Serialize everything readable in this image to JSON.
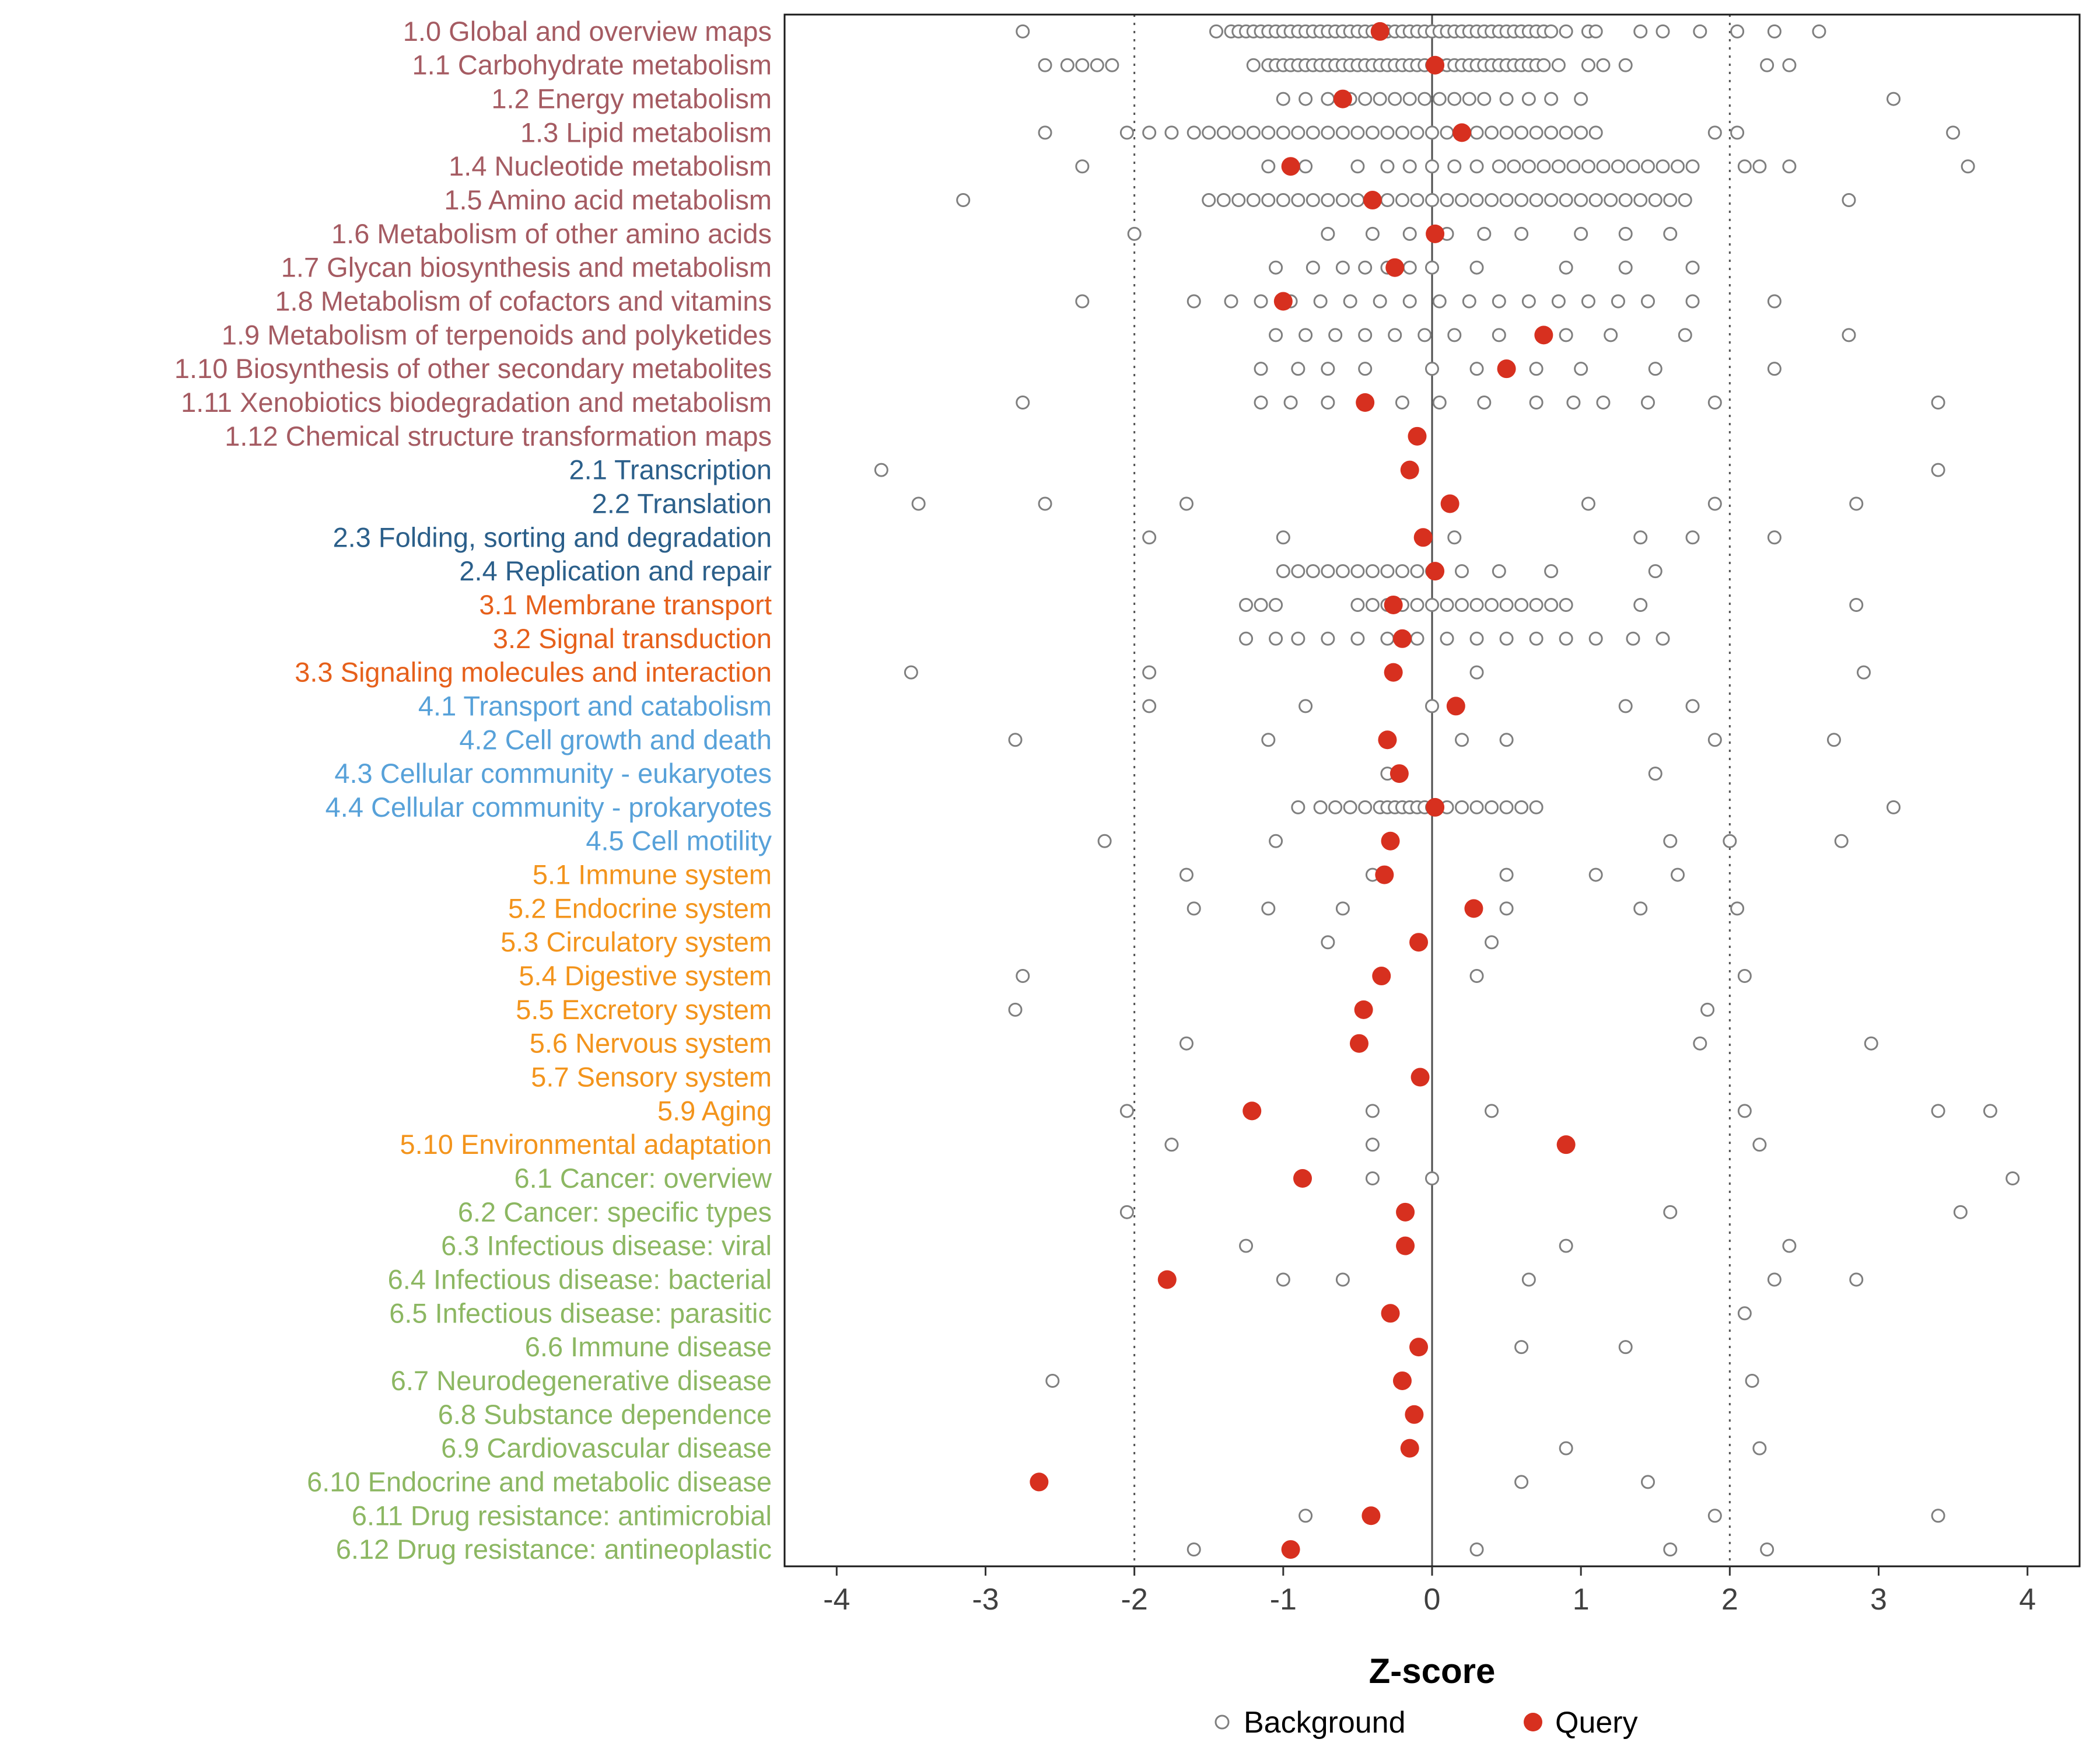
{
  "chart_data": {
    "type": "scatter",
    "title": "",
    "xlabel": "Z-score",
    "xlim": [
      -4.35,
      4.35
    ],
    "xticks": [
      -4,
      -3,
      -2,
      -1,
      0,
      1,
      2,
      3,
      4
    ],
    "grid": false,
    "reference_lines": {
      "solid": [
        0
      ],
      "dotted": [
        -2,
        2
      ]
    },
    "legend_position": "bottom",
    "legend": [
      {
        "label": "Background",
        "marker": "open-circle",
        "color": "#7f7f7f"
      },
      {
        "label": "Query",
        "marker": "filled-circle",
        "color": "#d7301f"
      }
    ],
    "group_colors": {
      "1": "#a55b62",
      "2": "#2b5f8a",
      "3": "#e6601b",
      "4": "#57a1d9",
      "5": "#f3941c",
      "6": "#8cb762"
    },
    "rows": [
      {
        "label": "1.0 Global and overview maps",
        "group": "1",
        "query": -0.35,
        "background": [
          -2.75,
          -1.45,
          -1.35,
          -1.3,
          -1.25,
          -1.2,
          -1.15,
          -1.1,
          -1.05,
          -1.0,
          -0.95,
          -0.9,
          -0.85,
          -0.8,
          -0.75,
          -0.7,
          -0.65,
          -0.6,
          -0.55,
          -0.5,
          -0.45,
          -0.4,
          -0.35,
          -0.3,
          -0.25,
          -0.2,
          -0.15,
          -0.1,
          -0.05,
          0.0,
          0.05,
          0.1,
          0.15,
          0.2,
          0.25,
          0.3,
          0.35,
          0.4,
          0.45,
          0.5,
          0.55,
          0.6,
          0.65,
          0.7,
          0.75,
          0.8,
          0.9,
          1.05,
          1.1,
          1.4,
          1.55,
          1.8,
          2.05,
          2.3,
          2.6
        ]
      },
      {
        "label": "1.1 Carbohydrate metabolism",
        "group": "1",
        "query": 0.02,
        "background": [
          -2.6,
          -2.45,
          -2.35,
          -2.25,
          -2.15,
          -1.2,
          -1.1,
          -1.05,
          -1.0,
          -0.95,
          -0.9,
          -0.85,
          -0.8,
          -0.75,
          -0.7,
          -0.65,
          -0.6,
          -0.55,
          -0.5,
          -0.45,
          -0.4,
          -0.35,
          -0.3,
          -0.25,
          -0.2,
          -0.15,
          -0.1,
          -0.05,
          0.0,
          0.05,
          0.1,
          0.15,
          0.2,
          0.25,
          0.3,
          0.35,
          0.4,
          0.45,
          0.5,
          0.55,
          0.6,
          0.65,
          0.7,
          0.75,
          0.85,
          1.05,
          1.15,
          1.3,
          2.25,
          2.4
        ]
      },
      {
        "label": "1.2 Energy metabolism",
        "group": "1",
        "query": -0.6,
        "background": [
          -1.0,
          -0.85,
          -0.7,
          -0.55,
          -0.45,
          -0.35,
          -0.25,
          -0.15,
          -0.05,
          0.05,
          0.15,
          0.25,
          0.35,
          0.5,
          0.65,
          0.8,
          1.0,
          3.1
        ]
      },
      {
        "label": "1.3 Lipid metabolism",
        "group": "1",
        "query": 0.2,
        "background": [
          -2.6,
          -2.05,
          -1.9,
          -1.75,
          -1.6,
          -1.5,
          -1.4,
          -1.3,
          -1.2,
          -1.1,
          -1.0,
          -0.9,
          -0.8,
          -0.7,
          -0.6,
          -0.5,
          -0.4,
          -0.3,
          -0.2,
          -0.1,
          0.0,
          0.1,
          0.2,
          0.3,
          0.4,
          0.5,
          0.6,
          0.7,
          0.8,
          0.9,
          1.0,
          1.1,
          1.9,
          2.05,
          3.5
        ]
      },
      {
        "label": "1.4 Nucleotide metabolism",
        "group": "1",
        "query": -0.95,
        "background": [
          -2.35,
          -1.1,
          -0.85,
          -0.5,
          -0.3,
          -0.15,
          0.0,
          0.15,
          0.3,
          0.45,
          0.55,
          0.65,
          0.75,
          0.85,
          0.95,
          1.05,
          1.15,
          1.25,
          1.35,
          1.45,
          1.55,
          1.65,
          1.75,
          2.1,
          2.2,
          2.4,
          3.6
        ]
      },
      {
        "label": "1.5 Amino acid metabolism",
        "group": "1",
        "query": -0.4,
        "background": [
          -3.15,
          -1.5,
          -1.4,
          -1.3,
          -1.2,
          -1.1,
          -1.0,
          -0.9,
          -0.8,
          -0.7,
          -0.6,
          -0.5,
          -0.4,
          -0.3,
          -0.2,
          -0.1,
          0.0,
          0.1,
          0.2,
          0.3,
          0.4,
          0.5,
          0.6,
          0.7,
          0.8,
          0.9,
          1.0,
          1.1,
          1.2,
          1.3,
          1.4,
          1.5,
          1.6,
          1.7,
          2.8
        ]
      },
      {
        "label": "1.6 Metabolism of other amino acids",
        "group": "1",
        "query": 0.02,
        "background": [
          -2.0,
          -0.7,
          -0.4,
          -0.15,
          0.1,
          0.35,
          0.6,
          1.0,
          1.3,
          1.6
        ]
      },
      {
        "label": "1.7 Glycan biosynthesis and metabolism",
        "group": "1",
        "query": -0.25,
        "background": [
          -1.05,
          -0.8,
          -0.6,
          -0.45,
          -0.3,
          -0.15,
          0.0,
          0.3,
          0.9,
          1.3,
          1.75
        ]
      },
      {
        "label": "1.8 Metabolism of cofactors and vitamins",
        "group": "1",
        "query": -1.0,
        "background": [
          -2.35,
          -1.6,
          -1.35,
          -1.15,
          -0.95,
          -0.75,
          -0.55,
          -0.35,
          -0.15,
          0.05,
          0.25,
          0.45,
          0.65,
          0.85,
          1.05,
          1.25,
          1.45,
          1.75,
          2.3
        ]
      },
      {
        "label": "1.9 Metabolism of terpenoids and polyketides",
        "group": "1",
        "query": 0.75,
        "background": [
          -1.05,
          -0.85,
          -0.65,
          -0.45,
          -0.25,
          -0.05,
          0.15,
          0.45,
          0.9,
          1.2,
          1.7,
          2.8
        ]
      },
      {
        "label": "1.10 Biosynthesis of other secondary metabolites",
        "group": "1",
        "query": 0.5,
        "background": [
          -1.15,
          -0.9,
          -0.7,
          -0.45,
          0.0,
          0.3,
          0.7,
          1.0,
          1.5,
          2.3
        ]
      },
      {
        "label": "1.11 Xenobiotics biodegradation and metabolism",
        "group": "1",
        "query": -0.45,
        "background": [
          -2.75,
          -1.15,
          -0.95,
          -0.7,
          -0.45,
          -0.2,
          0.05,
          0.35,
          0.7,
          0.95,
          1.15,
          1.45,
          1.9,
          3.4
        ]
      },
      {
        "label": "1.12 Chemical structure transformation maps",
        "group": "1",
        "query": -0.1,
        "background": []
      },
      {
        "label": "2.1 Transcription",
        "group": "2",
        "query": -0.15,
        "background": [
          -3.7,
          3.4
        ]
      },
      {
        "label": "2.2 Translation",
        "group": "2",
        "query": 0.12,
        "background": [
          -3.45,
          -2.6,
          -1.65,
          1.05,
          1.9,
          2.85
        ]
      },
      {
        "label": "2.3 Folding, sorting and degradation",
        "group": "2",
        "query": -0.06,
        "background": [
          -1.9,
          -1.0,
          0.15,
          1.4,
          1.75,
          2.3
        ]
      },
      {
        "label": "2.4 Replication and repair",
        "group": "2",
        "query": 0.02,
        "background": [
          -1.0,
          -0.9,
          -0.8,
          -0.7,
          -0.6,
          -0.5,
          -0.4,
          -0.3,
          -0.2,
          -0.1,
          0.0,
          0.2,
          0.45,
          0.8,
          1.5
        ]
      },
      {
        "label": "3.1 Membrane transport",
        "group": "3",
        "query": -0.26,
        "background": [
          -1.25,
          -1.15,
          -1.05,
          -0.5,
          -0.4,
          -0.3,
          -0.2,
          -0.1,
          0.0,
          0.1,
          0.2,
          0.3,
          0.4,
          0.5,
          0.6,
          0.7,
          0.8,
          0.9,
          1.4,
          2.85
        ]
      },
      {
        "label": "3.2 Signal transduction",
        "group": "3",
        "query": -0.2,
        "background": [
          -1.25,
          -1.05,
          -0.9,
          -0.7,
          -0.5,
          -0.3,
          -0.1,
          0.1,
          0.3,
          0.5,
          0.7,
          0.9,
          1.1,
          1.35,
          1.55
        ]
      },
      {
        "label": "3.3 Signaling molecules and interaction",
        "group": "3",
        "query": -0.26,
        "background": [
          -3.5,
          -1.9,
          0.3,
          2.9
        ]
      },
      {
        "label": "4.1 Transport and catabolism",
        "group": "4",
        "query": 0.16,
        "background": [
          -1.9,
          -0.85,
          0.0,
          1.3,
          1.75
        ]
      },
      {
        "label": "4.2 Cell growth and death",
        "group": "4",
        "query": -0.3,
        "background": [
          -2.8,
          -1.1,
          0.2,
          0.5,
          1.9,
          2.7
        ]
      },
      {
        "label": "4.3 Cellular community - eukaryotes",
        "group": "4",
        "query": -0.22,
        "background": [
          -0.3,
          1.5
        ]
      },
      {
        "label": "4.4 Cellular community - prokaryotes",
        "group": "4",
        "query": 0.02,
        "background": [
          -0.9,
          -0.75,
          -0.65,
          -0.55,
          -0.45,
          -0.35,
          -0.3,
          -0.25,
          -0.2,
          -0.15,
          -0.1,
          -0.05,
          0.0,
          0.1,
          0.2,
          0.3,
          0.4,
          0.5,
          0.6,
          0.7,
          3.1
        ]
      },
      {
        "label": "4.5 Cell motility",
        "group": "4",
        "query": -0.28,
        "background": [
          -2.2,
          -1.05,
          1.6,
          2.0,
          2.75
        ]
      },
      {
        "label": "5.1 Immune system",
        "group": "5",
        "query": -0.32,
        "background": [
          -1.65,
          -0.4,
          0.5,
          1.1,
          1.65
        ]
      },
      {
        "label": "5.2 Endocrine system",
        "group": "5",
        "query": 0.28,
        "background": [
          -1.6,
          -1.1,
          -0.6,
          0.5,
          1.4,
          2.05
        ]
      },
      {
        "label": "5.3 Circulatory system",
        "group": "5",
        "query": -0.09,
        "background": [
          -0.7,
          0.4
        ]
      },
      {
        "label": "5.4 Digestive system",
        "group": "5",
        "query": -0.34,
        "background": [
          -2.75,
          0.3,
          2.1
        ]
      },
      {
        "label": "5.5 Excretory system",
        "group": "5",
        "query": -0.46,
        "background": [
          -2.8,
          1.85
        ]
      },
      {
        "label": "5.6 Nervous system",
        "group": "5",
        "query": -0.49,
        "background": [
          -1.65,
          1.8,
          2.95
        ]
      },
      {
        "label": "5.7 Sensory system",
        "group": "5",
        "query": -0.08,
        "background": []
      },
      {
        "label": "5.9 Aging",
        "group": "5",
        "query": -1.21,
        "background": [
          -2.05,
          -0.4,
          0.4,
          2.1,
          3.4,
          3.75
        ]
      },
      {
        "label": "5.10 Environmental adaptation",
        "group": "5",
        "query": 0.9,
        "background": [
          -1.75,
          -0.4,
          2.2
        ]
      },
      {
        "label": "6.1 Cancer: overview",
        "group": "6",
        "query": -0.87,
        "background": [
          -0.4,
          0.0,
          3.9
        ]
      },
      {
        "label": "6.2 Cancer: specific types",
        "group": "6",
        "query": -0.18,
        "background": [
          -2.05,
          1.6,
          3.55
        ]
      },
      {
        "label": "6.3 Infectious disease: viral",
        "group": "6",
        "query": -0.18,
        "background": [
          -1.25,
          0.9,
          2.4
        ]
      },
      {
        "label": "6.4 Infectious disease: bacterial",
        "group": "6",
        "query": -1.78,
        "background": [
          -1.0,
          -0.6,
          0.65,
          2.3,
          2.85
        ]
      },
      {
        "label": "6.5 Infectious disease: parasitic",
        "group": "6",
        "query": -0.28,
        "background": [
          2.1
        ]
      },
      {
        "label": "6.6 Immune disease",
        "group": "6",
        "query": -0.09,
        "background": [
          0.6,
          1.3
        ]
      },
      {
        "label": "6.7 Neurodegenerative disease",
        "group": "6",
        "query": -0.2,
        "background": [
          -2.55,
          2.15
        ]
      },
      {
        "label": "6.8 Substance dependence",
        "group": "6",
        "query": -0.12,
        "background": []
      },
      {
        "label": "6.9 Cardiovascular disease",
        "group": "6",
        "query": -0.15,
        "background": [
          0.9,
          2.2
        ]
      },
      {
        "label": "6.10 Endocrine and metabolic disease",
        "group": "6",
        "query": -2.64,
        "background": [
          0.6,
          1.45
        ]
      },
      {
        "label": "6.11 Drug resistance: antimicrobial",
        "group": "6",
        "query": -0.41,
        "background": [
          -0.85,
          1.9,
          3.4
        ]
      },
      {
        "label": "6.12 Drug resistance: antineoplastic",
        "group": "6",
        "query": -0.95,
        "background": [
          -1.6,
          0.3,
          1.6,
          2.25
        ]
      }
    ]
  }
}
